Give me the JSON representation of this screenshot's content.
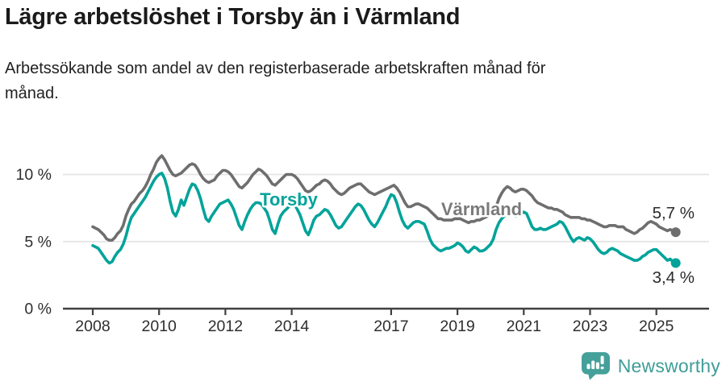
{
  "header": {
    "title": "Lägre arbetslöshet i Torsby än i Värmland",
    "subtitle": "Arbetssökande som andel av den registerbaserade arbetskraften månad för månad."
  },
  "footer": {
    "brand": "Newsworthy",
    "brand_color": "#3f9d98"
  },
  "colors": {
    "torsby": "#00a39a",
    "varmland": "#6e6e6e",
    "varmland_label": "#7a7a7a",
    "grid": "#e4e4e4",
    "axis": "#404040",
    "tick_text": "#2e2e2e",
    "value_text": "#2b2b2b"
  },
  "chart_data": {
    "type": "line",
    "title": "Lägre arbetslöshet i Torsby än i Värmland",
    "subtitle": "Arbetssökande som andel av den registerbaserade arbetskraften månad för månad.",
    "x_unit": "month",
    "x_start": "2008-01",
    "x_end": "2025-08",
    "x_tick_years": [
      2008,
      2010,
      2012,
      2014,
      2017,
      2019,
      2021,
      2023,
      2025
    ],
    "y_ticks": [
      {
        "value": 0,
        "label": "0 %"
      },
      {
        "value": 5,
        "label": "5 %"
      },
      {
        "value": 10,
        "label": "10 %"
      }
    ],
    "ylim": [
      0,
      12
    ],
    "grid": true,
    "legend": "inline-labels",
    "series": [
      {
        "name": "Värmland",
        "color": "#6e6e6e",
        "end_label": "5,7 %",
        "end_value": 5.7,
        "values": [
          6.1,
          6.0,
          5.9,
          5.7,
          5.5,
          5.2,
          5.1,
          5.1,
          5.3,
          5.6,
          5.8,
          6.2,
          6.9,
          7.4,
          7.8,
          8.0,
          8.3,
          8.6,
          8.8,
          9.1,
          9.5,
          10.0,
          10.4,
          10.9,
          11.2,
          11.4,
          11.1,
          10.7,
          10.3,
          10.0,
          9.9,
          10.0,
          10.1,
          10.3,
          10.5,
          10.7,
          10.8,
          10.7,
          10.4,
          10.0,
          9.7,
          9.5,
          9.4,
          9.5,
          9.6,
          9.9,
          10.1,
          10.3,
          10.3,
          10.2,
          10.0,
          9.7,
          9.4,
          9.1,
          9.0,
          9.2,
          9.4,
          9.7,
          10.0,
          10.2,
          10.4,
          10.3,
          10.1,
          9.9,
          9.6,
          9.3,
          9.2,
          9.4,
          9.6,
          9.8,
          10.0,
          10.0,
          10.0,
          9.9,
          9.7,
          9.4,
          9.1,
          8.8,
          8.7,
          8.8,
          9.0,
          9.2,
          9.3,
          9.5,
          9.6,
          9.5,
          9.3,
          9.0,
          8.8,
          8.6,
          8.5,
          8.6,
          8.8,
          9.0,
          9.1,
          9.2,
          9.3,
          9.3,
          9.1,
          8.9,
          8.7,
          8.6,
          8.5,
          8.6,
          8.7,
          8.8,
          8.9,
          9.0,
          9.1,
          9.2,
          9.0,
          8.7,
          8.3,
          7.9,
          7.6,
          7.6,
          7.7,
          7.8,
          7.8,
          7.7,
          7.6,
          7.5,
          7.3,
          7.1,
          6.9,
          6.7,
          6.7,
          6.6,
          6.6,
          6.6,
          6.6,
          6.7,
          6.7,
          6.7,
          6.6,
          6.5,
          6.4,
          6.5,
          6.5,
          6.6,
          6.6,
          6.7,
          6.8,
          6.9,
          7.0,
          7.2,
          7.6,
          8.2,
          8.6,
          8.9,
          9.1,
          9.0,
          8.8,
          8.7,
          8.8,
          8.9,
          8.9,
          8.8,
          8.6,
          8.4,
          8.1,
          7.9,
          7.8,
          7.7,
          7.6,
          7.5,
          7.5,
          7.4,
          7.4,
          7.3,
          7.2,
          7.0,
          6.9,
          6.8,
          6.8,
          6.8,
          6.8,
          6.7,
          6.7,
          6.6,
          6.6,
          6.5,
          6.4,
          6.3,
          6.2,
          6.1,
          6.1,
          6.2,
          6.2,
          6.2,
          6.1,
          6.1,
          6.1,
          5.9,
          5.8,
          5.7,
          5.6,
          5.7,
          5.9,
          6.0,
          6.2,
          6.4,
          6.5,
          6.4,
          6.3,
          6.1,
          6.0,
          5.9,
          5.8,
          5.9,
          5.8,
          5.7
        ]
      },
      {
        "name": "Torsby",
        "color": "#00a39a",
        "end_label": "3,4 %",
        "end_value": 3.4,
        "values": [
          4.7,
          4.6,
          4.5,
          4.2,
          3.9,
          3.6,
          3.4,
          3.5,
          3.9,
          4.2,
          4.4,
          4.8,
          5.4,
          6.2,
          6.8,
          7.1,
          7.4,
          7.7,
          8.0,
          8.3,
          8.7,
          9.1,
          9.5,
          9.8,
          10.0,
          10.1,
          9.7,
          9.0,
          8.0,
          7.2,
          6.9,
          7.4,
          8.1,
          7.7,
          8.3,
          8.9,
          9.3,
          9.2,
          8.8,
          8.2,
          7.4,
          6.7,
          6.5,
          6.9,
          7.2,
          7.5,
          7.8,
          7.9,
          8.0,
          8.1,
          7.8,
          7.4,
          6.8,
          6.2,
          5.9,
          6.5,
          7.0,
          7.4,
          7.7,
          7.9,
          7.9,
          7.8,
          7.5,
          7.2,
          6.6,
          5.9,
          5.6,
          6.3,
          6.9,
          7.2,
          7.4,
          7.6,
          7.9,
          7.8,
          7.4,
          7.0,
          6.4,
          5.8,
          5.5,
          6.0,
          6.6,
          6.9,
          7.0,
          7.2,
          7.4,
          7.3,
          7.0,
          6.6,
          6.2,
          6.0,
          6.1,
          6.4,
          6.7,
          7.0,
          7.3,
          7.6,
          7.8,
          7.7,
          7.4,
          7.0,
          6.6,
          6.3,
          6.1,
          6.4,
          6.8,
          7.2,
          7.6,
          8.1,
          8.5,
          8.4,
          7.9,
          7.2,
          6.6,
          6.2,
          6.0,
          6.2,
          6.4,
          6.5,
          6.5,
          6.4,
          6.3,
          5.8,
          5.2,
          4.8,
          4.6,
          4.4,
          4.3,
          4.4,
          4.5,
          4.5,
          4.6,
          4.7,
          4.9,
          4.8,
          4.6,
          4.3,
          4.2,
          4.4,
          4.6,
          4.5,
          4.3,
          4.3,
          4.4,
          4.6,
          4.8,
          5.2,
          5.9,
          6.4,
          6.7,
          6.9,
          7.2,
          7.3,
          7.1,
          6.9,
          7.0,
          7.1,
          7.2,
          7.1,
          6.6,
          6.1,
          5.9,
          5.9,
          6.0,
          5.9,
          5.9,
          6.0,
          6.1,
          6.2,
          6.3,
          6.5,
          6.4,
          6.1,
          5.7,
          5.3,
          5.0,
          5.2,
          5.3,
          5.2,
          5.1,
          5.3,
          5.2,
          5.0,
          4.7,
          4.4,
          4.2,
          4.1,
          4.2,
          4.4,
          4.5,
          4.4,
          4.3,
          4.1,
          4.0,
          3.9,
          3.8,
          3.7,
          3.6,
          3.6,
          3.7,
          3.9,
          4.0,
          4.2,
          4.3,
          4.4,
          4.4,
          4.2,
          4.0,
          3.8,
          3.6,
          3.7,
          3.5,
          3.4
        ]
      }
    ]
  }
}
